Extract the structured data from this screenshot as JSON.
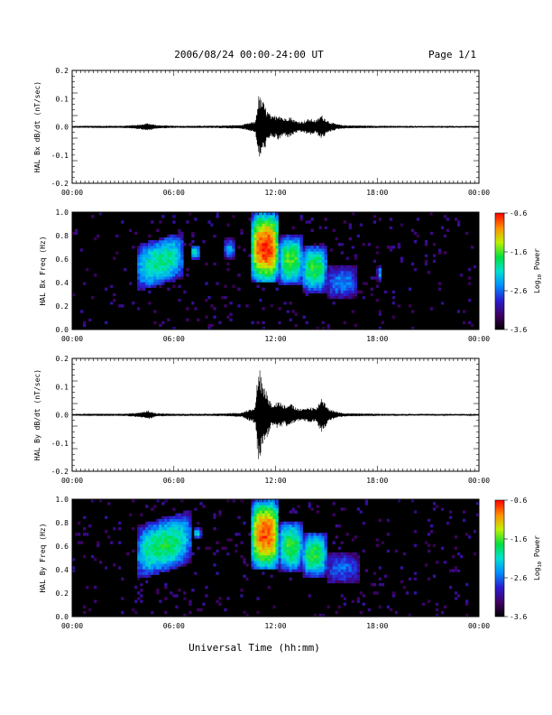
{
  "header": {
    "title": "2006/08/24  00:00-24:00 UT",
    "page": "Page 1/1"
  },
  "xaxis_label": "Universal Time (hh:mm)",
  "time_ticks": [
    "00:00",
    "06:00",
    "12:00",
    "18:00",
    "00:00"
  ],
  "colorbar": {
    "ticks": [
      "-0.6",
      "-1.6",
      "-2.6",
      "-3.6"
    ],
    "label_prefix": "Log",
    "label_sub": "10",
    "label_suffix": " Power",
    "range": [
      -3.6,
      -0.6
    ]
  },
  "chart_data": [
    {
      "type": "line",
      "ylabel": "HAL Bx dB/dt (nT/sec)",
      "ylim": [
        -0.2,
        0.2
      ],
      "xlim_hours": [
        0,
        24
      ],
      "yticks": [
        "0.2",
        "0.1",
        "0.0",
        "-0.1",
        "-0.2"
      ],
      "envelope": {
        "hours": [
          0.0,
          1.0,
          3.0,
          4.0,
          4.5,
          5.0,
          6.0,
          7.0,
          8.0,
          9.0,
          10.0,
          10.8,
          11.0,
          11.2,
          11.5,
          11.8,
          12.2,
          12.5,
          12.8,
          13.2,
          13.6,
          14.0,
          14.4,
          14.7,
          15.2,
          15.6,
          16.0,
          17.0,
          18.0,
          20.0,
          22.0,
          24.0
        ],
        "pos": [
          0.003,
          0.004,
          0.004,
          0.008,
          0.014,
          0.006,
          0.004,
          0.004,
          0.004,
          0.005,
          0.007,
          0.02,
          0.113,
          0.1,
          0.06,
          0.036,
          0.05,
          0.03,
          0.04,
          0.022,
          0.02,
          0.03,
          0.024,
          0.044,
          0.018,
          0.01,
          0.006,
          0.005,
          0.004,
          0.003,
          0.003,
          0.003
        ],
        "neg": [
          0.003,
          0.004,
          0.004,
          0.008,
          0.014,
          0.006,
          0.004,
          0.004,
          0.004,
          0.005,
          0.007,
          0.02,
          0.118,
          0.1,
          0.06,
          0.036,
          0.05,
          0.03,
          0.04,
          0.022,
          0.02,
          0.03,
          0.024,
          0.044,
          0.018,
          0.01,
          0.006,
          0.005,
          0.004,
          0.003,
          0.003,
          0.003
        ]
      }
    },
    {
      "type": "heatmap",
      "ylabel": "HAL Bx Freq (Hz)",
      "ylim": [
        0.0,
        1.0
      ],
      "xlim_hours": [
        0,
        24
      ],
      "yticks": [
        "1.0",
        "0.8",
        "0.6",
        "0.4",
        "0.2",
        "0.0"
      ],
      "zlim": [
        -3.6,
        -0.6
      ],
      "features": [
        {
          "t0": 3.8,
          "t1": 6.6,
          "f0": 0.38,
          "f1": 0.78,
          "peak": -1.9,
          "slope": 0.12
        },
        {
          "t0": 7.0,
          "t1": 7.5,
          "f0": 0.6,
          "f1": 0.72,
          "peak": -2.0,
          "slope": 0
        },
        {
          "t0": 9.0,
          "t1": 9.6,
          "f0": 0.6,
          "f1": 0.78,
          "peak": -2.4,
          "slope": 0
        },
        {
          "t0": 10.6,
          "t1": 12.2,
          "f0": 0.4,
          "f1": 1.0,
          "peak": -0.7,
          "slope": 0
        },
        {
          "t0": 12.2,
          "t1": 13.6,
          "f0": 0.38,
          "f1": 0.8,
          "peak": -1.6,
          "slope": 0
        },
        {
          "t0": 13.6,
          "t1": 15.0,
          "f0": 0.32,
          "f1": 0.72,
          "peak": -1.7,
          "slope": 0
        },
        {
          "t0": 15.0,
          "t1": 16.8,
          "f0": 0.26,
          "f1": 0.55,
          "peak": -2.5,
          "slope": 0
        },
        {
          "t0": 18.0,
          "t1": 18.3,
          "f0": 0.4,
          "f1": 0.55,
          "peak": -2.4,
          "slope": 0
        }
      ]
    },
    {
      "type": "line",
      "ylabel": "HAL By dB/dt (nT/sec)",
      "ylim": [
        -0.2,
        0.2
      ],
      "xlim_hours": [
        0,
        24
      ],
      "yticks": [
        "0.2",
        "0.1",
        "0.0",
        "-0.1",
        "-0.2"
      ],
      "envelope": {
        "hours": [
          0.0,
          1.0,
          3.0,
          4.0,
          4.5,
          5.0,
          6.0,
          7.0,
          8.0,
          9.0,
          10.0,
          10.8,
          11.0,
          11.2,
          11.5,
          11.8,
          12.2,
          12.5,
          12.8,
          13.2,
          13.6,
          14.0,
          14.4,
          14.7,
          15.2,
          15.6,
          16.0,
          17.0,
          18.0,
          20.0,
          22.0,
          24.0
        ],
        "pos": [
          0.003,
          0.004,
          0.004,
          0.008,
          0.016,
          0.006,
          0.004,
          0.004,
          0.004,
          0.005,
          0.008,
          0.03,
          0.185,
          0.12,
          0.08,
          0.04,
          0.05,
          0.035,
          0.045,
          0.025,
          0.02,
          0.03,
          0.024,
          0.065,
          0.02,
          0.012,
          0.006,
          0.005,
          0.004,
          0.003,
          0.003,
          0.003
        ],
        "neg": [
          0.003,
          0.004,
          0.004,
          0.008,
          0.016,
          0.006,
          0.004,
          0.004,
          0.004,
          0.005,
          0.008,
          0.03,
          0.185,
          0.12,
          0.08,
          0.04,
          0.05,
          0.035,
          0.045,
          0.025,
          0.02,
          0.03,
          0.024,
          0.065,
          0.02,
          0.012,
          0.006,
          0.005,
          0.004,
          0.003,
          0.003,
          0.003
        ]
      }
    },
    {
      "type": "heatmap",
      "ylabel": "HAL By Freq (Hz)",
      "ylim": [
        0.0,
        1.0
      ],
      "xlim_hours": [
        0,
        24
      ],
      "yticks": [
        "1.0",
        "0.8",
        "0.6",
        "0.4",
        "0.2",
        "0.0"
      ],
      "zlim": [
        -3.6,
        -0.6
      ],
      "features": [
        {
          "t0": 3.8,
          "t1": 7.0,
          "f0": 0.38,
          "f1": 0.84,
          "peak": -1.8,
          "slope": 0.14
        },
        {
          "t0": 7.2,
          "t1": 7.6,
          "f0": 0.66,
          "f1": 0.76,
          "peak": -2.2,
          "slope": 0
        },
        {
          "t0": 10.6,
          "t1": 12.2,
          "f0": 0.4,
          "f1": 1.0,
          "peak": -0.8,
          "slope": 0
        },
        {
          "t0": 12.2,
          "t1": 13.6,
          "f0": 0.38,
          "f1": 0.82,
          "peak": -1.7,
          "slope": 0
        },
        {
          "t0": 13.6,
          "t1": 15.0,
          "f0": 0.34,
          "f1": 0.72,
          "peak": -1.7,
          "slope": 0
        },
        {
          "t0": 15.0,
          "t1": 16.9,
          "f0": 0.28,
          "f1": 0.55,
          "peak": -2.6,
          "slope": 0
        }
      ]
    }
  ]
}
